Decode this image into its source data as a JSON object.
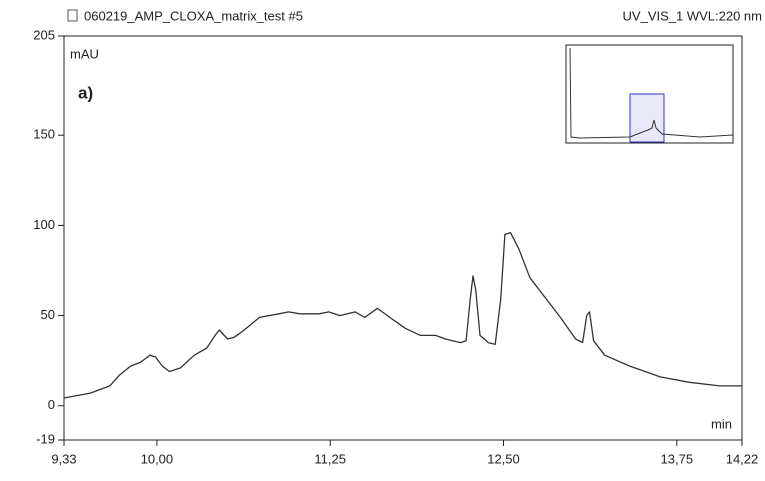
{
  "chart_data": {
    "type": "line",
    "title": "060219_AMP_CLOXA_matrix_test #5",
    "subtitle": "UV_VIS_1 WVL:220 nm",
    "y_label": "mAU",
    "x_label": "min",
    "annotation": "a)",
    "x": [
      9.33,
      9.52,
      9.66,
      9.73,
      9.81,
      9.88,
      9.95,
      9.99,
      10.04,
      10.09,
      10.17,
      10.27,
      10.36,
      10.42,
      10.45,
      10.51,
      10.56,
      10.63,
      10.74,
      10.88,
      10.95,
      11.03,
      11.17,
      11.24,
      11.32,
      11.43,
      11.5,
      11.59,
      11.68,
      11.79,
      11.9,
      12.01,
      12.08,
      12.19,
      12.23,
      12.26,
      12.28,
      12.3,
      12.33,
      12.39,
      12.44,
      12.48,
      12.51,
      12.55,
      12.61,
      12.69,
      12.8,
      12.91,
      13.02,
      13.07,
      13.1,
      13.12,
      13.15,
      13.23,
      13.41,
      13.63,
      13.84,
      14.06,
      14.22
    ],
    "series": [
      {
        "color": "#333333",
        "values": [
          4.3,
          7,
          11,
          17,
          22,
          24,
          28,
          27,
          22,
          19,
          21,
          28,
          32,
          39,
          42,
          37,
          38,
          42,
          49,
          51,
          52,
          51,
          51,
          52,
          50,
          52,
          49,
          54,
          49,
          43,
          39,
          39,
          37,
          35,
          36,
          59,
          72,
          64,
          39,
          35,
          34,
          59,
          95,
          96,
          87,
          71,
          60,
          49,
          37,
          35,
          50,
          52,
          36,
          28,
          22,
          16,
          13,
          11,
          11
        ]
      }
    ],
    "xlim": [
      9.33,
      14.22
    ],
    "xticks": [
      {
        "value": 9.33,
        "label": "9,33"
      },
      {
        "value": 10.0,
        "label": "10,00"
      },
      {
        "value": 11.25,
        "label": "11,25"
      },
      {
        "value": 12.5,
        "label": "12,50"
      },
      {
        "value": 13.75,
        "label": "13,75"
      },
      {
        "value": 14.22,
        "label": "14,22"
      }
    ],
    "ylim": [
      -19,
      205
    ],
    "yticks": [
      -19,
      0,
      50,
      100,
      150,
      205
    ]
  }
}
